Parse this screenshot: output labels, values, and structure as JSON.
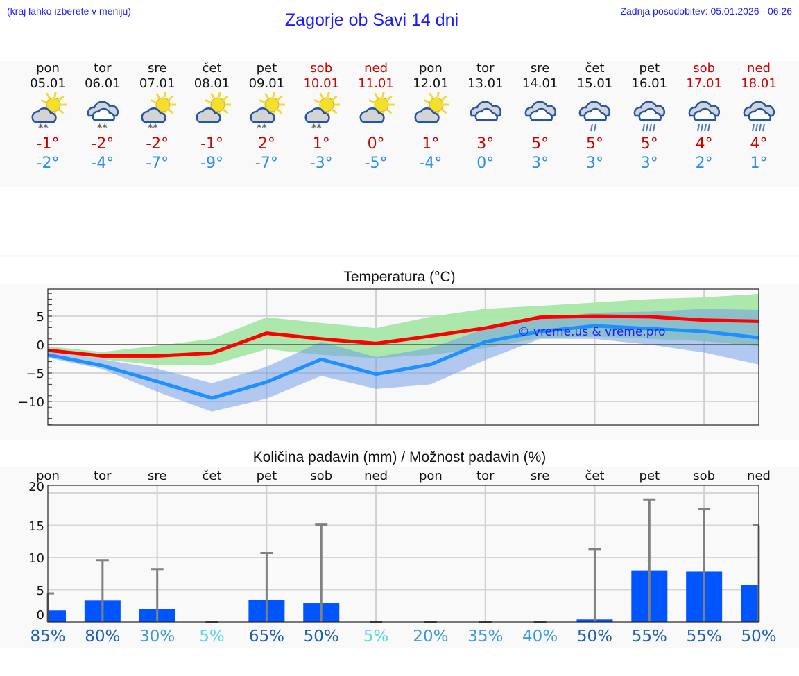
{
  "header": {
    "hint": "(kraj lahko izberete v meniju)",
    "title": "Zagorje ob Savi 14 dni",
    "updated": "Zadnja posodobitev: 05.01.2026 - 06:26"
  },
  "days": [
    {
      "name": "pon",
      "date": "05.01",
      "weekend": false,
      "icon": "partly-sunny-snow-icon",
      "tmax": "-1°",
      "tmin": "-2°"
    },
    {
      "name": "tor",
      "date": "06.01",
      "weekend": false,
      "icon": "cloudy-snow-icon",
      "tmax": "-2°",
      "tmin": "-4°"
    },
    {
      "name": "sre",
      "date": "07.01",
      "weekend": false,
      "icon": "partly-sunny-snow-icon",
      "tmax": "-2°",
      "tmin": "-7°"
    },
    {
      "name": "čet",
      "date": "08.01",
      "weekend": false,
      "icon": "partly-sunny-icon",
      "tmax": "-1°",
      "tmin": "-9°"
    },
    {
      "name": "pet",
      "date": "09.01",
      "weekend": false,
      "icon": "partly-sunny-snow-icon",
      "tmax": "2°",
      "tmin": "-7°"
    },
    {
      "name": "sob",
      "date": "10.01",
      "weekend": true,
      "icon": "partly-sunny-snow-icon",
      "tmax": "1°",
      "tmin": "-3°"
    },
    {
      "name": "ned",
      "date": "11.01",
      "weekend": true,
      "icon": "partly-sunny-icon",
      "tmax": "0°",
      "tmin": "-5°"
    },
    {
      "name": "pon",
      "date": "12.01",
      "weekend": false,
      "icon": "partly-sunny-icon",
      "tmax": "1°",
      "tmin": "-4°"
    },
    {
      "name": "tor",
      "date": "13.01",
      "weekend": false,
      "icon": "cloudy-icon",
      "tmax": "3°",
      "tmin": "0°"
    },
    {
      "name": "sre",
      "date": "14.01",
      "weekend": false,
      "icon": "cloudy-icon",
      "tmax": "5°",
      "tmin": "3°"
    },
    {
      "name": "čet",
      "date": "15.01",
      "weekend": false,
      "icon": "cloudy-light-rain-icon",
      "tmax": "5°",
      "tmin": "3°"
    },
    {
      "name": "pet",
      "date": "16.01",
      "weekend": false,
      "icon": "cloudy-rain-icon",
      "tmax": "5°",
      "tmin": "3°"
    },
    {
      "name": "sob",
      "date": "17.01",
      "weekend": true,
      "icon": "cloudy-rain-icon",
      "tmax": "4°",
      "tmin": "2°"
    },
    {
      "name": "ned",
      "date": "18.01",
      "weekend": true,
      "icon": "cloudy-rain-icon",
      "tmax": "4°",
      "tmin": "1°"
    }
  ],
  "colors": {
    "title_blue": "#1a1aff",
    "max_red": "#ff0000",
    "min_blue": "#1e90ff",
    "max_band": "#a8e6a8",
    "min_band": "#a9c4f0",
    "overlap_band": "#7fc8a8",
    "bar_blue": "#0055ff",
    "error_gray": "#808080",
    "weekend_red": "#cc0000"
  },
  "chart_data": [
    {
      "type": "line",
      "title": "Temperatura (°C)",
      "xlabel": "",
      "ylabel": "",
      "ylim": [
        -14,
        10
      ],
      "yticks": [
        5,
        0,
        -5,
        -10
      ],
      "yticklabels": [
        "5",
        "0",
        "−5",
        "−10"
      ],
      "grid": true,
      "watermark": "© vreme.us & vreme.pro",
      "x": [
        "05.01",
        "06.01",
        "07.01",
        "08.01",
        "09.01",
        "10.01",
        "11.01",
        "12.01",
        "13.01",
        "14.01",
        "15.01",
        "16.01",
        "17.01",
        "18.01"
      ],
      "series": [
        {
          "name": "max",
          "color": "#ff0000",
          "values": [
            -1.0,
            -2.0,
            -2.0,
            -1.5,
            2.0,
            1.0,
            0.2,
            1.5,
            2.9,
            4.8,
            5.0,
            4.9,
            4.3,
            4.1
          ]
        },
        {
          "name": "min",
          "color": "#1e90ff",
          "values": [
            -1.8,
            -3.7,
            -6.5,
            -9.4,
            -6.6,
            -2.6,
            -5.2,
            -3.5,
            0.5,
            2.3,
            3.3,
            2.8,
            2.3,
            1.2
          ]
        },
        {
          "name": "max_range_upper",
          "values": [
            -0.3,
            -1.3,
            -0.2,
            1.0,
            4.8,
            3.8,
            2.9,
            4.9,
            6.3,
            6.8,
            7.4,
            8.0,
            8.3,
            8.9
          ]
        },
        {
          "name": "max_range_lower",
          "values": [
            -1.3,
            -2.6,
            -3.6,
            -3.6,
            -0.8,
            -1.8,
            -2.4,
            -1.8,
            -0.6,
            1.2,
            1.4,
            1.0,
            0.6,
            -0.3
          ]
        },
        {
          "name": "min_range_upper",
          "values": [
            -1.3,
            -2.6,
            -4.2,
            -6.8,
            -3.9,
            0.5,
            -2.2,
            -0.6,
            2.8,
            4.6,
            5.6,
            5.8,
            6.3,
            6.1
          ]
        },
        {
          "name": "min_range_lower",
          "values": [
            -2.3,
            -4.3,
            -8.3,
            -11.8,
            -9.5,
            -5.5,
            -7.8,
            -7.0,
            -2.7,
            1.0,
            1.0,
            0.0,
            -1.4,
            -3.5
          ]
        }
      ]
    },
    {
      "type": "bar",
      "title": "Količina padavin (mm) / Možnost padavin (%)",
      "xlabel": "",
      "ylabel": "",
      "ylim": [
        0,
        21
      ],
      "yticks": [
        20,
        15,
        10,
        5,
        0
      ],
      "grid": true,
      "categories": [
        "pon",
        "tor",
        "sre",
        "čet",
        "pet",
        "sob",
        "ned",
        "pon",
        "tor",
        "sre",
        "čet",
        "pet",
        "sob",
        "ned"
      ],
      "series": [
        {
          "name": "precipitation_mm",
          "color": "#0055ff",
          "values": [
            1.8,
            3.3,
            2.0,
            0.0,
            3.4,
            2.9,
            0.0,
            0.0,
            0.0,
            0.0,
            0.4,
            8.0,
            7.8,
            5.7
          ]
        },
        {
          "name": "precipitation_max_mm",
          "color": "#808080",
          "values": [
            4.4,
            9.6,
            8.2,
            0.0,
            10.7,
            15.1,
            0.0,
            0.0,
            0.0,
            0.0,
            11.3,
            19.0,
            17.5,
            15.0
          ]
        }
      ],
      "probability": [
        "85%",
        "80%",
        "30%",
        "5%",
        "65%",
        "50%",
        "5%",
        "20%",
        "35%",
        "40%",
        "50%",
        "55%",
        "55%",
        "50%"
      ],
      "probability_colors": [
        "#1a5fb4",
        "#1a5fb4",
        "#3a9ad9",
        "#5ad6e6",
        "#1a5fb4",
        "#1a5fb4",
        "#5ad6e6",
        "#3a9ad9",
        "#3a9ad9",
        "#3a9ad9",
        "#1a5fb4",
        "#1a5fb4",
        "#1a5fb4",
        "#1a5fb4"
      ]
    }
  ]
}
